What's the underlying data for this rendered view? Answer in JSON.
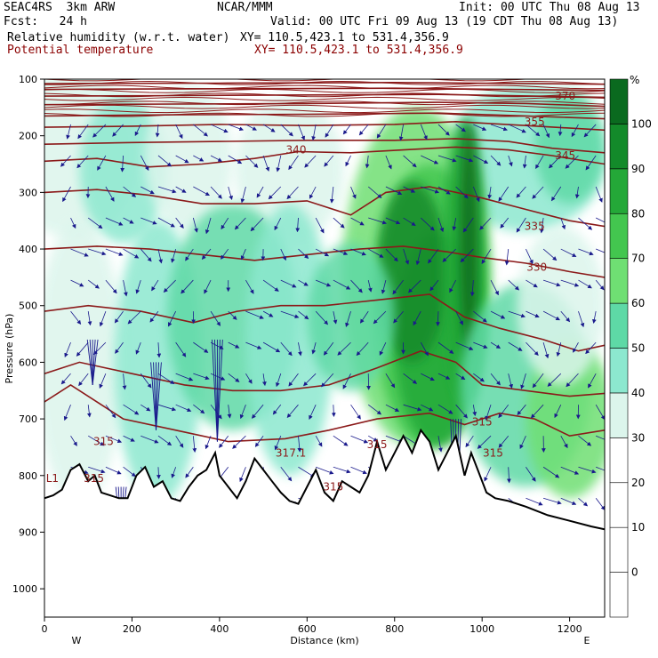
{
  "header": {
    "model": "SEAC4RS  3km ARW",
    "org": "NCAR/MMM",
    "init": "Init: 00 UTC Thu 08 Aug 13",
    "fcst": "Fcst:   24 h",
    "valid": "Valid: 00 UTC Fri 09 Aug 13 (19 CDT Thu 08 Aug 13)",
    "field1": "Relative humidity (w.r.t. water)",
    "xy1": "XY= 110.5,423.1 to 531.4,356.9",
    "field2": "Potential temperature",
    "xy2": "XY= 110.5,423.1 to 531.4,356.9"
  },
  "chart_data": {
    "type": "heatmap",
    "xlabel": "Distance (km)",
    "ylabel": "Pressure (hPa)",
    "xlim": [
      0,
      1280
    ],
    "ylim": [
      1050,
      100
    ],
    "x_ticks": [
      "0",
      "200",
      "400",
      "600",
      "800",
      "1000",
      "1200"
    ],
    "y_ticks": [
      "100",
      "200",
      "300",
      "400",
      "500",
      "600",
      "700",
      "800",
      "900",
      "1000"
    ],
    "direction_labels": {
      "west": "W",
      "east": "E"
    },
    "colorbar": {
      "unit": "%",
      "levels": [
        "0",
        "10",
        "20",
        "30",
        "40",
        "50",
        "60",
        "70",
        "80",
        "90",
        "100"
      ],
      "colors": [
        "#ffffff",
        "#ffffff",
        "#ffffff",
        "#ffffff",
        "#dcf5ec",
        "#8ce8cf",
        "#5ed9a6",
        "#6fdf73",
        "#43c64f",
        "#24a838",
        "#138a2a",
        "#0a6a1f"
      ]
    },
    "theta_labels": [
      {
        "text": "370",
        "x": 1190,
        "p": 130
      },
      {
        "text": "355",
        "x": 1120,
        "p": 175
      },
      {
        "text": "340",
        "x": 575,
        "p": 225
      },
      {
        "text": "345",
        "x": 1190,
        "p": 235
      },
      {
        "text": "335",
        "x": 1120,
        "p": 360
      },
      {
        "text": "330",
        "x": 1125,
        "p": 432
      },
      {
        "text": "315",
        "x": 135,
        "p": 740
      },
      {
        "text": "317.1",
        "x": 563,
        "p": 760
      },
      {
        "text": "315",
        "x": 760,
        "p": 745
      },
      {
        "text": "315",
        "x": 1000,
        "p": 705
      },
      {
        "text": "315",
        "x": 1025,
        "p": 760
      },
      {
        "text": "315",
        "x": 113,
        "p": 805
      },
      {
        "text": "315",
        "x": 660,
        "p": 820
      },
      {
        "text": "L1",
        "x": 18,
        "p": 805
      }
    ],
    "theta_lines": [
      {
        "value": 315,
        "points": [
          [
            0,
            670
          ],
          [
            60,
            640
          ],
          [
            110,
            665
          ],
          [
            180,
            700
          ],
          [
            300,
            720
          ],
          [
            420,
            740
          ],
          [
            550,
            735
          ],
          [
            650,
            720
          ],
          [
            760,
            700
          ],
          [
            880,
            690
          ],
          [
            960,
            710
          ],
          [
            1040,
            690
          ],
          [
            1120,
            700
          ],
          [
            1200,
            730
          ],
          [
            1280,
            720
          ]
        ]
      },
      {
        "value": 320,
        "points": [
          [
            0,
            620
          ],
          [
            80,
            600
          ],
          [
            200,
            620
          ],
          [
            320,
            640
          ],
          [
            430,
            650
          ],
          [
            540,
            650
          ],
          [
            650,
            640
          ],
          [
            760,
            610
          ],
          [
            860,
            580
          ],
          [
            940,
            600
          ],
          [
            1000,
            640
          ],
          [
            1100,
            650
          ],
          [
            1200,
            660
          ],
          [
            1280,
            655
          ]
        ]
      },
      {
        "value": 325,
        "points": [
          [
            0,
            510
          ],
          [
            100,
            500
          ],
          [
            220,
            510
          ],
          [
            340,
            530
          ],
          [
            440,
            510
          ],
          [
            540,
            500
          ],
          [
            640,
            500
          ],
          [
            760,
            490
          ],
          [
            880,
            480
          ],
          [
            960,
            520
          ],
          [
            1040,
            540
          ],
          [
            1140,
            560
          ],
          [
            1220,
            580
          ],
          [
            1280,
            570
          ]
        ]
      },
      {
        "value": 330,
        "points": [
          [
            0,
            400
          ],
          [
            120,
            395
          ],
          [
            240,
            400
          ],
          [
            360,
            410
          ],
          [
            480,
            420
          ],
          [
            600,
            410
          ],
          [
            720,
            400
          ],
          [
            820,
            395
          ],
          [
            920,
            405
          ],
          [
            1000,
            415
          ],
          [
            1100,
            425
          ],
          [
            1200,
            440
          ],
          [
            1280,
            450
          ]
        ]
      },
      {
        "value": 335,
        "points": [
          [
            0,
            300
          ],
          [
            120,
            295
          ],
          [
            240,
            305
          ],
          [
            360,
            320
          ],
          [
            480,
            320
          ],
          [
            600,
            315
          ],
          [
            700,
            340
          ],
          [
            780,
            300
          ],
          [
            880,
            290
          ],
          [
            1000,
            310
          ],
          [
            1100,
            330
          ],
          [
            1200,
            350
          ],
          [
            1280,
            360
          ]
        ]
      },
      {
        "value": 340,
        "points": [
          [
            0,
            245
          ],
          [
            120,
            240
          ],
          [
            240,
            255
          ],
          [
            360,
            250
          ],
          [
            480,
            240
          ],
          [
            580,
            228
          ],
          [
            700,
            230
          ],
          [
            820,
            225
          ],
          [
            940,
            220
          ],
          [
            1060,
            225
          ],
          [
            1160,
            235
          ],
          [
            1280,
            250
          ]
        ]
      },
      {
        "value": 345,
        "points": [
          [
            0,
            215
          ],
          [
            200,
            212
          ],
          [
            400,
            210
          ],
          [
            600,
            208
          ],
          [
            800,
            208
          ],
          [
            940,
            205
          ],
          [
            1060,
            210
          ],
          [
            1160,
            222
          ],
          [
            1280,
            230
          ]
        ]
      },
      {
        "value": 350,
        "points": [
          [
            0,
            185
          ],
          [
            200,
            183
          ],
          [
            400,
            180
          ],
          [
            600,
            182
          ],
          [
            800,
            180
          ],
          [
            940,
            175
          ],
          [
            1100,
            182
          ],
          [
            1280,
            190
          ]
        ]
      },
      {
        "value": 355,
        "points": [
          [
            0,
            165
          ],
          [
            300,
            163
          ],
          [
            600,
            162
          ],
          [
            900,
            160
          ],
          [
            1100,
            165
          ],
          [
            1280,
            170
          ]
        ]
      },
      {
        "value": 360,
        "points": [
          [
            0,
            145
          ],
          [
            300,
            144
          ],
          [
            600,
            143
          ],
          [
            900,
            141
          ],
          [
            1100,
            143
          ],
          [
            1280,
            148
          ]
        ]
      },
      {
        "value": 365,
        "points": [
          [
            0,
            130
          ],
          [
            300,
            129
          ],
          [
            600,
            128
          ],
          [
            900,
            127
          ],
          [
            1280,
            132
          ]
        ]
      },
      {
        "value": 370,
        "points": [
          [
            0,
            118
          ],
          [
            400,
            117
          ],
          [
            800,
            116
          ],
          [
            1280,
            120
          ]
        ]
      },
      {
        "value": 375,
        "points": [
          [
            0,
            108
          ],
          [
            400,
            107
          ],
          [
            800,
            106
          ],
          [
            1280,
            109
          ]
        ]
      }
    ],
    "terrain": [
      [
        0,
        840
      ],
      [
        20,
        835
      ],
      [
        40,
        825
      ],
      [
        60,
        790
      ],
      [
        80,
        780
      ],
      [
        100,
        810
      ],
      [
        115,
        800
      ],
      [
        130,
        830
      ],
      [
        150,
        835
      ],
      [
        170,
        840
      ],
      [
        190,
        840
      ],
      [
        210,
        800
      ],
      [
        230,
        785
      ],
      [
        250,
        820
      ],
      [
        270,
        810
      ],
      [
        290,
        840
      ],
      [
        310,
        845
      ],
      [
        330,
        820
      ],
      [
        350,
        800
      ],
      [
        370,
        790
      ],
      [
        390,
        760
      ],
      [
        400,
        800
      ],
      [
        420,
        820
      ],
      [
        440,
        840
      ],
      [
        460,
        810
      ],
      [
        480,
        770
      ],
      [
        500,
        790
      ],
      [
        520,
        810
      ],
      [
        540,
        830
      ],
      [
        560,
        845
      ],
      [
        580,
        850
      ],
      [
        600,
        820
      ],
      [
        620,
        790
      ],
      [
        640,
        830
      ],
      [
        660,
        845
      ],
      [
        680,
        810
      ],
      [
        700,
        820
      ],
      [
        720,
        830
      ],
      [
        740,
        800
      ],
      [
        760,
        740
      ],
      [
        780,
        790
      ],
      [
        800,
        760
      ],
      [
        820,
        730
      ],
      [
        840,
        760
      ],
      [
        860,
        720
      ],
      [
        880,
        740
      ],
      [
        900,
        790
      ],
      [
        920,
        760
      ],
      [
        940,
        730
      ],
      [
        960,
        800
      ],
      [
        975,
        760
      ],
      [
        990,
        790
      ],
      [
        1000,
        810
      ],
      [
        1010,
        830
      ],
      [
        1030,
        840
      ],
      [
        1060,
        845
      ],
      [
        1100,
        855
      ],
      [
        1150,
        870
      ],
      [
        1200,
        880
      ],
      [
        1250,
        890
      ],
      [
        1280,
        895
      ]
    ]
  }
}
